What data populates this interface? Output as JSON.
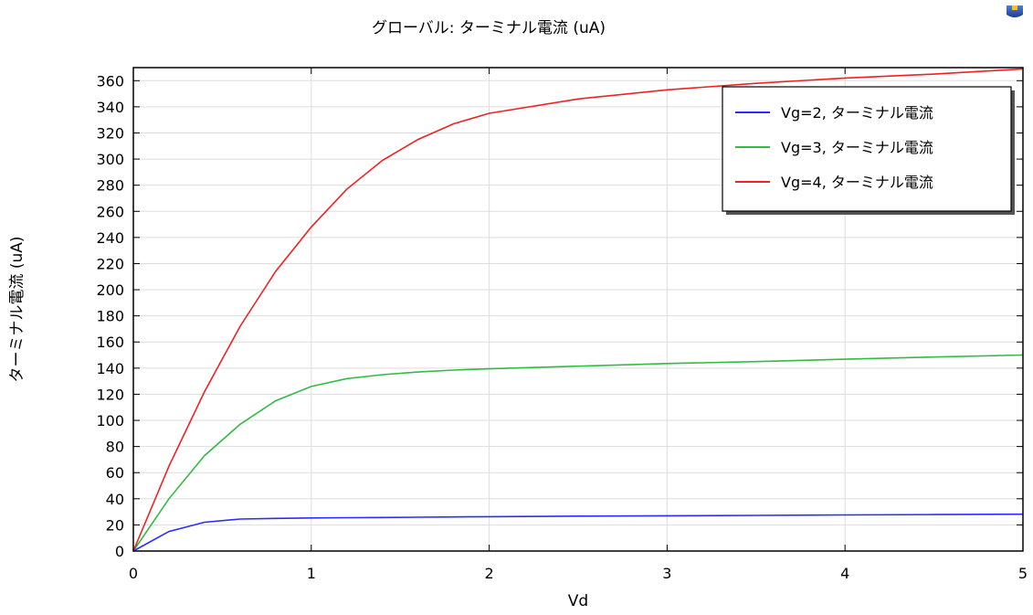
{
  "title": "グローバル: ターミナル電流 (uA)",
  "toolbar": {
    "icon": "app-logo-icon"
  },
  "colors": {
    "blue": "#2b2bff",
    "green": "#33bb44",
    "red": "#ee2222",
    "grid": "#dddddd"
  },
  "chart_data": {
    "type": "line",
    "title": "グローバル: ターミナル電流 (uA)",
    "xlabel": "Vd",
    "ylabel": "ターミナル電流 (uA)",
    "xlim": [
      0,
      5
    ],
    "ylim": [
      0,
      370
    ],
    "xticks": [
      0,
      1,
      2,
      3,
      4,
      5
    ],
    "yticks": [
      0,
      20,
      40,
      60,
      80,
      100,
      120,
      140,
      160,
      180,
      200,
      220,
      240,
      260,
      280,
      300,
      320,
      340,
      360
    ],
    "grid": true,
    "legend_position": "top-right",
    "x": [
      0,
      0.2,
      0.4,
      0.6,
      0.8,
      1.0,
      1.2,
      1.4,
      1.6,
      1.8,
      2.0,
      2.5,
      3.0,
      3.5,
      4.0,
      4.5,
      5.0
    ],
    "series": [
      {
        "name": "Vg=2, ターミナル電流",
        "color": "#2b2bff",
        "values": [
          0,
          15,
          22,
          24.5,
          25,
          25.3,
          25.5,
          25.7,
          25.9,
          26.1,
          26.3,
          26.7,
          27.0,
          27.3,
          27.6,
          27.9,
          28.2
        ]
      },
      {
        "name": "Vg=3, ターミナル電流",
        "color": "#33bb44",
        "values": [
          0,
          40,
          73,
          97,
          115,
          126,
          132,
          135,
          137,
          138.5,
          139.5,
          141.5,
          143.5,
          145,
          146.8,
          148.5,
          150
        ]
      },
      {
        "name": "Vg=4, ターミナル電流",
        "color": "#ee2222",
        "values": [
          0,
          65,
          122,
          172,
          214,
          248,
          277,
          299,
          315,
          327,
          335,
          346,
          353,
          358,
          362,
          365,
          369
        ]
      }
    ]
  }
}
